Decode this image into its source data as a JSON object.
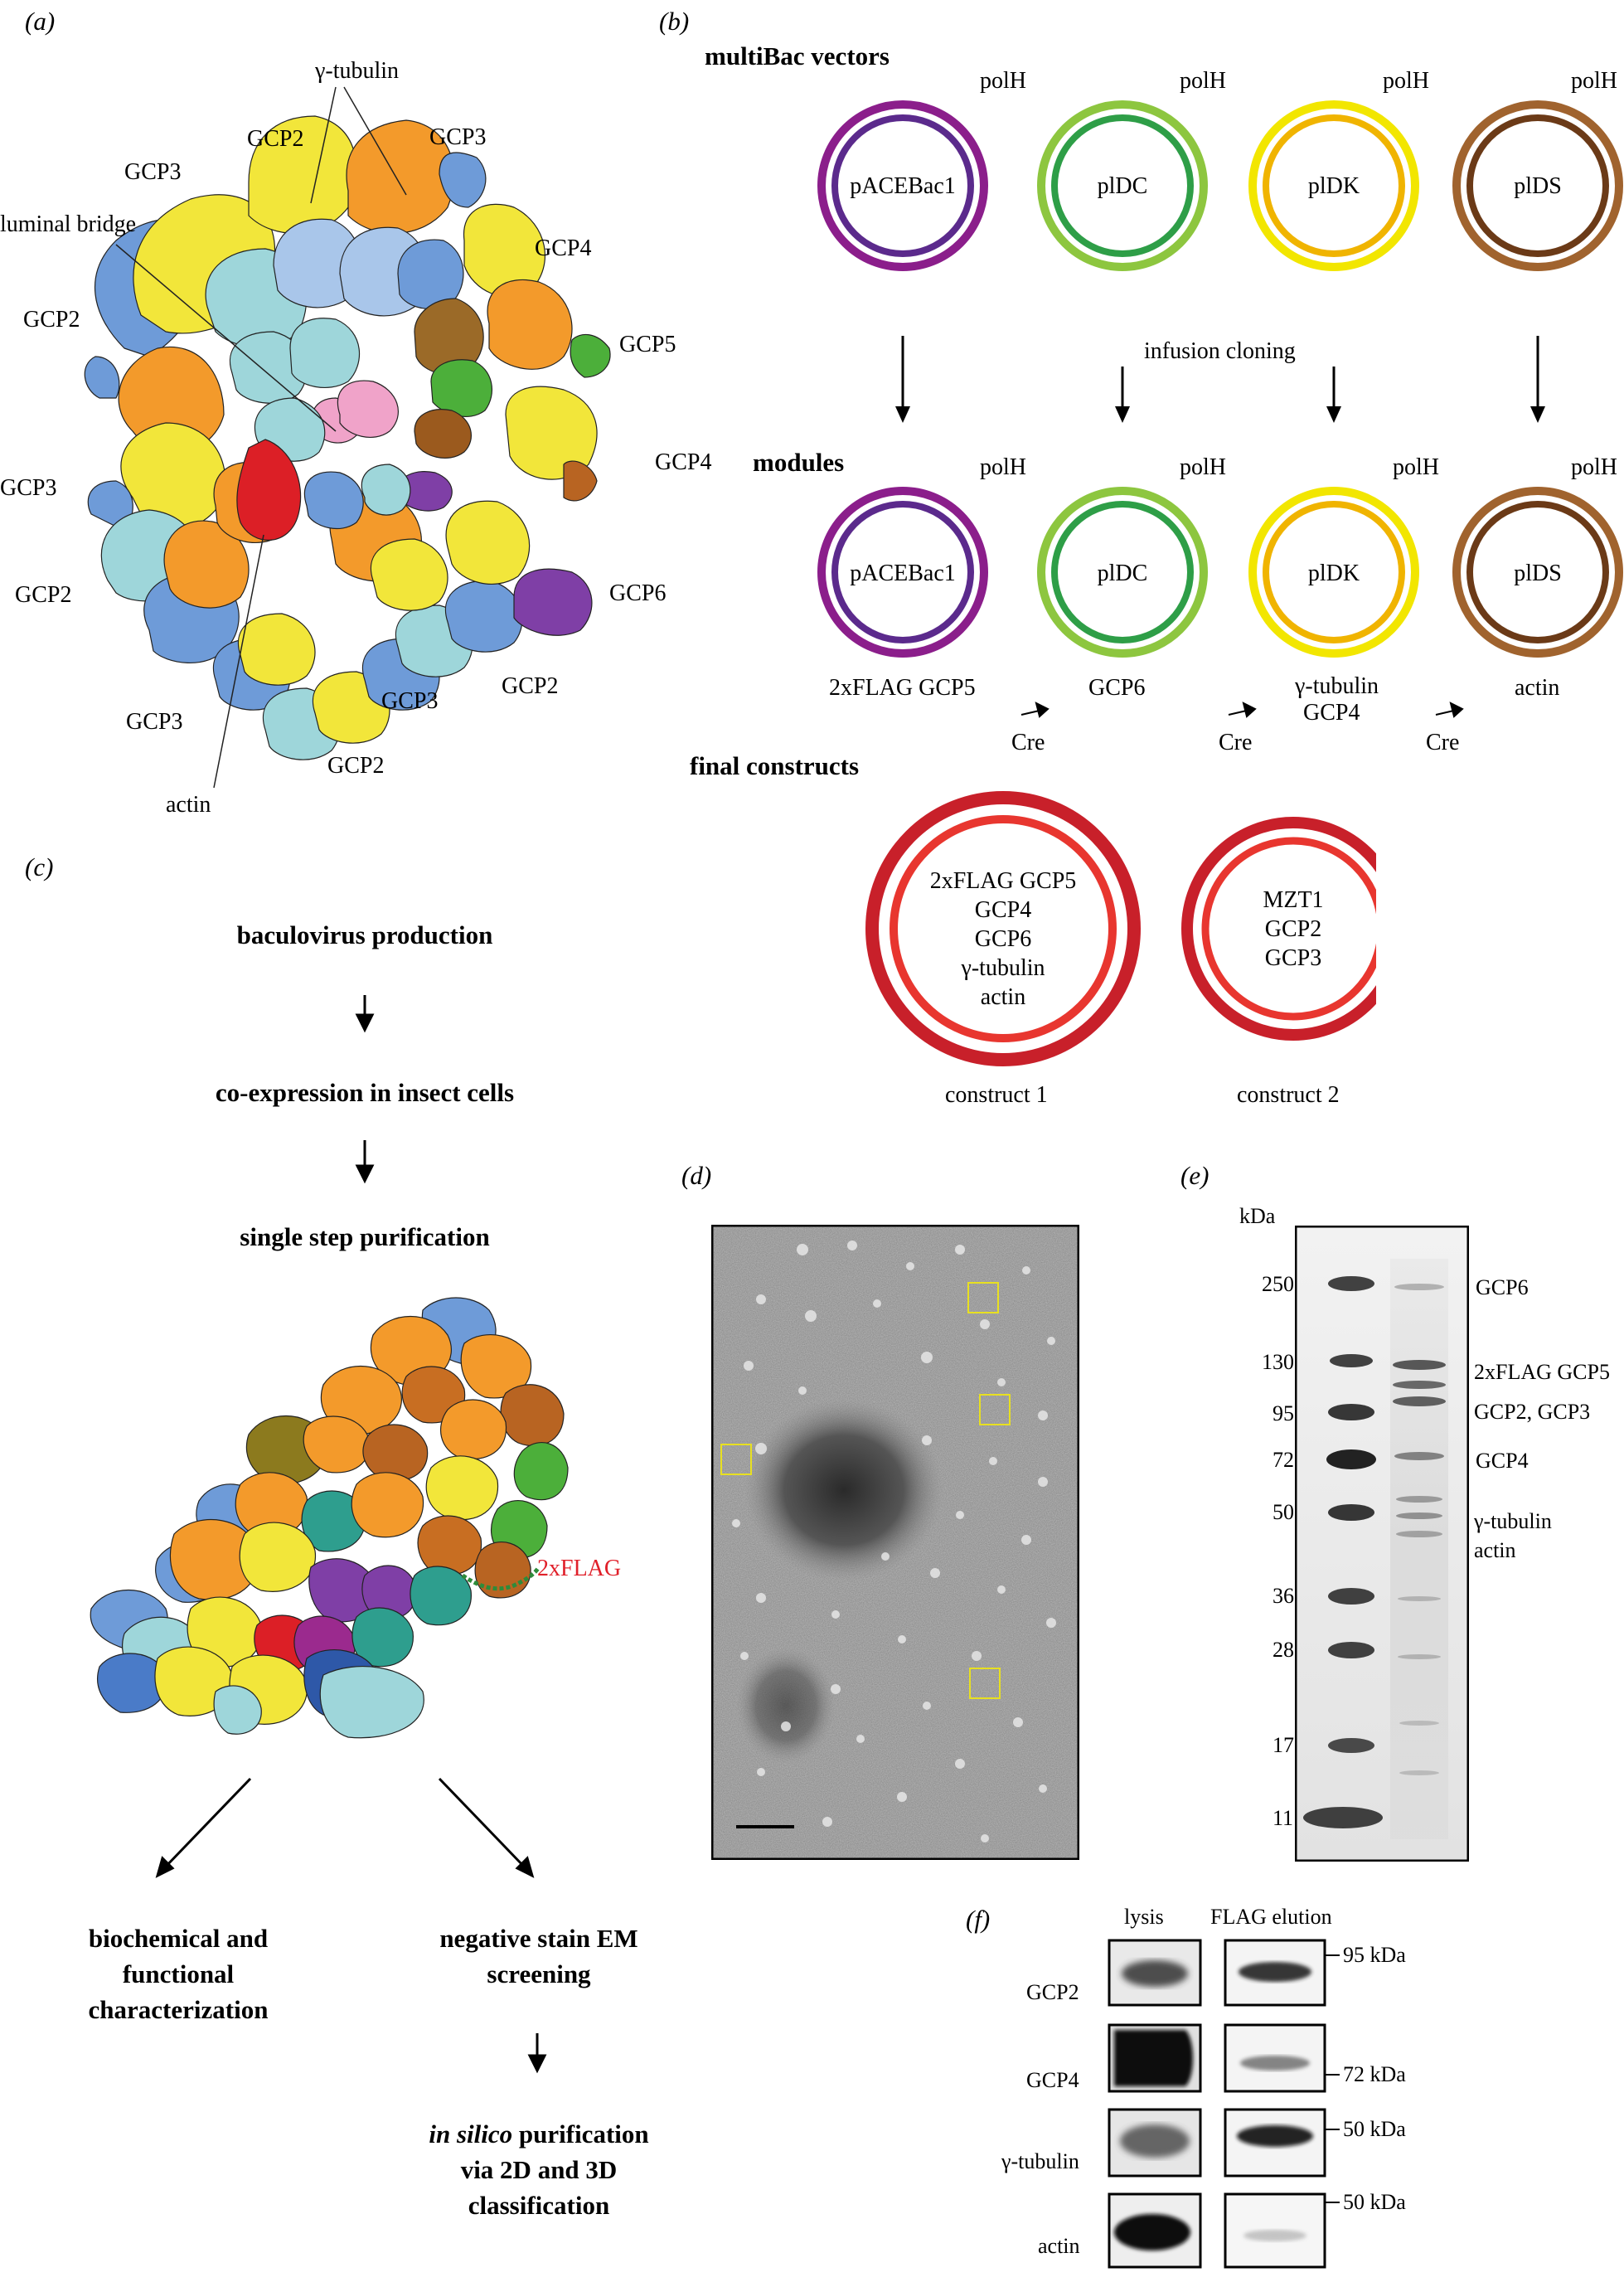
{
  "panel_a": {
    "letter": "(a)",
    "labels": {
      "gamma_tubulin": "γ-tubulin",
      "gcp2_top": "GCP2",
      "gcp3_top_right": "GCP3",
      "gcp3_top_left": "GCP3",
      "luminal_bridge": "luminal bridge",
      "gcp4_right": "GCP4",
      "gcp2_left": "GCP2",
      "gcp5": "GCP5",
      "gcp4_mid": "GCP4",
      "gcp3_left": "GCP3",
      "gcp2_lower_left": "GCP2",
      "gcp6": "GCP6",
      "gcp2_lower_right": "GCP2",
      "gcp3_bottom_left": "GCP3",
      "gcp3_bottom_mid": "GCP3",
      "gcp2_bottom": "GCP2",
      "actin": "actin"
    }
  },
  "panel_b": {
    "letter": "(b)",
    "multibac_title": "multiBac vectors",
    "modules_title": "modules",
    "final_title": "final constructs",
    "promoter": "polH",
    "infusion": "infusion cloning",
    "cre": "Cre",
    "vectors": [
      {
        "name": "pACEBac1",
        "outer": "#8B1E8B",
        "inner": "#5B2A8C"
      },
      {
        "name": "plDC",
        "outer": "#8DC63F",
        "inner": "#2E9E47"
      },
      {
        "name": "plDK",
        "outer": "#F2E600",
        "inner": "#F0B400"
      },
      {
        "name": "plDS",
        "outer": "#A0632E",
        "inner": "#6B3A17"
      }
    ],
    "module_labels": [
      "2xFLAG GCP5",
      "GCP6",
      "γ-tubulin",
      "GCP4",
      "actin"
    ],
    "constructs": [
      {
        "lines": [
          "2xFLAG GCP5",
          "GCP4",
          "GCP6",
          "γ-tubulin",
          "actin"
        ],
        "caption": "construct 1"
      },
      {
        "lines": [
          "MZT1",
          "GCP2",
          "GCP3"
        ],
        "caption": "construct 2"
      }
    ],
    "construct_outer": "#C8202A",
    "construct_inner": "#E8362F"
  },
  "panel_c": {
    "letter": "(c)",
    "step1": "baculovirus production",
    "step2": "co-expression in insect cells",
    "step3": "single step purification",
    "tag": "2xFLAG",
    "tag_color": "#E0202A",
    "branch_left": [
      "biochemical and",
      "functional",
      "characterization"
    ],
    "branch_right": [
      "negative stain EM",
      "screening"
    ],
    "final_italic": "in silico",
    "final_rest": " purification",
    "final_lines": [
      "via 2D and 3D",
      "classification"
    ]
  },
  "panel_d": {
    "letter": "(d)"
  },
  "panel_e": {
    "letter": "(e)",
    "unit": "kDa",
    "ladder": [
      "250",
      "130",
      "95",
      "72",
      "50",
      "36",
      "28",
      "17",
      "11"
    ],
    "bands": [
      "GCP6",
      "2xFLAG GCP5",
      "GCP2, GCP3",
      "GCP4",
      "γ-tubulin",
      "actin"
    ]
  },
  "panel_f": {
    "letter": "(f)",
    "col_lysis": "lysis",
    "col_elution": "FLAG elution",
    "rows": [
      "GCP2",
      "GCP4",
      "γ-tubulin",
      "actin"
    ],
    "markers": [
      "95 kDa",
      "72 kDa",
      "50 kDa",
      "50 kDa"
    ]
  }
}
